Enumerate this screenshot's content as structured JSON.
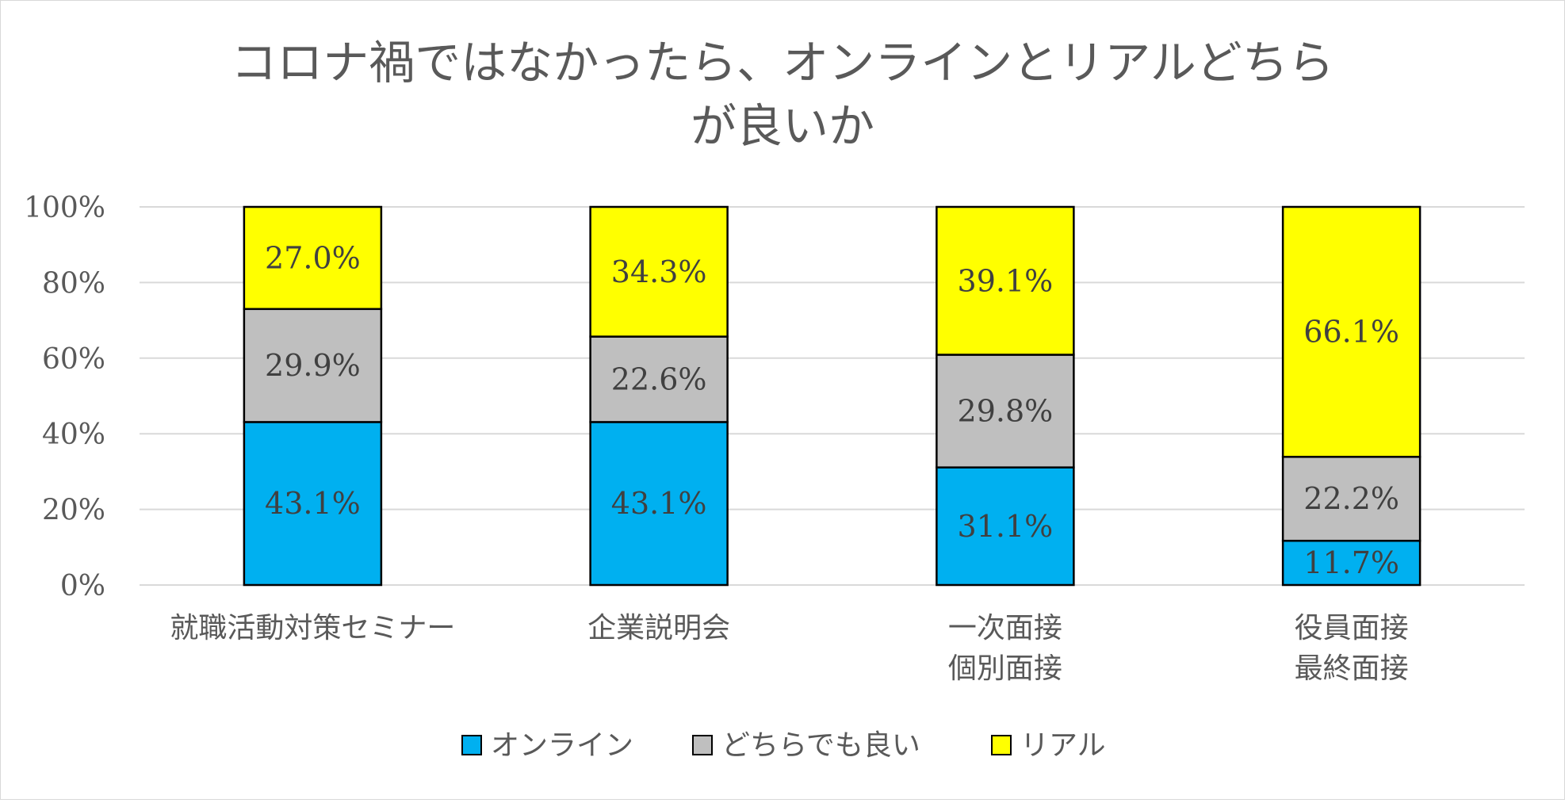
{
  "chart_data": {
    "type": "bar",
    "stacked": true,
    "title_lines": [
      "コロナ禍ではなかったら、オンラインとリアルどちら",
      "が良いか"
    ],
    "categories": [
      [
        "就職活動対策セミナー"
      ],
      [
        "企業説明会"
      ],
      [
        "一次面接",
        "個別面接"
      ],
      [
        "役員面接",
        "最終面接"
      ]
    ],
    "series": [
      {
        "name": "オンライン",
        "color": "#00b0f0",
        "values": [
          43.1,
          43.1,
          31.1,
          11.7
        ],
        "labels": [
          "43.1%",
          "43.1%",
          "31.1%",
          "11.7%"
        ]
      },
      {
        "name": "どちらでも良い",
        "color": "#bfbfbf",
        "values": [
          29.9,
          22.6,
          29.8,
          22.2
        ],
        "labels": [
          "29.9%",
          "22.6%",
          "29.8%",
          "22.2%"
        ]
      },
      {
        "name": "リアル",
        "color": "#ffff00",
        "values": [
          27.0,
          34.3,
          39.1,
          66.1
        ],
        "labels": [
          "27.0%",
          "34.3%",
          "39.1%",
          "66.1%"
        ]
      }
    ],
    "ylim": [
      0,
      100
    ],
    "yticks": [
      0,
      20,
      40,
      60,
      80,
      100
    ],
    "ytick_labels": [
      "0%",
      "20%",
      "40%",
      "60%",
      "80%",
      "100%"
    ],
    "grid": true,
    "legend_position": "bottom"
  }
}
